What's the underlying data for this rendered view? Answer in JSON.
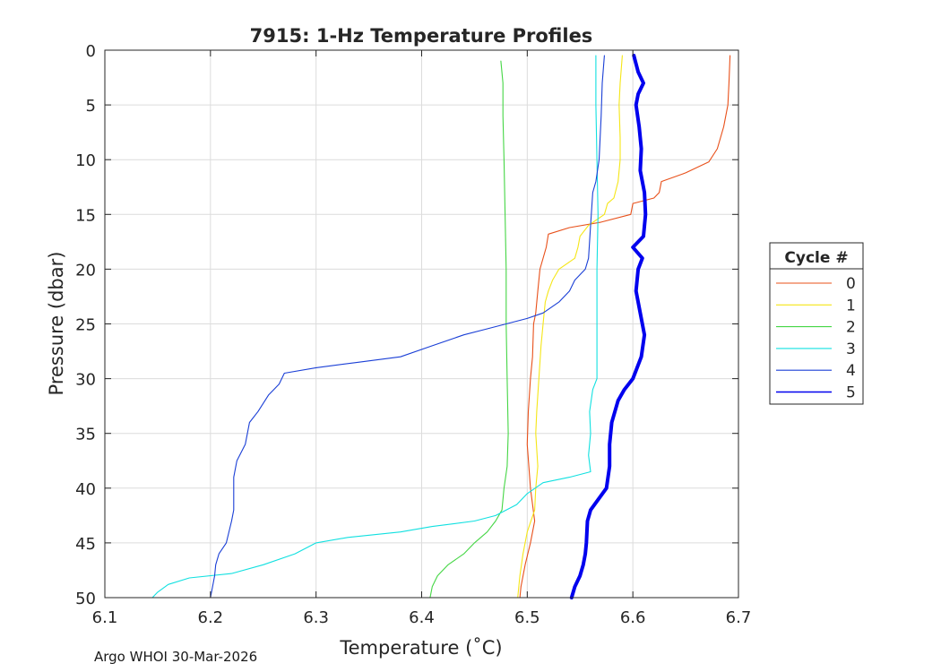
{
  "chart_data": {
    "type": "line",
    "title": "7915: 1-Hz Temperature Profiles",
    "xlabel": "Temperature (˚C)",
    "ylabel": "Pressure (dbar)",
    "xlim": [
      6.1,
      6.7
    ],
    "ylim": [
      0,
      50
    ],
    "y_reversed": true,
    "grid": true,
    "x_ticks": [
      6.1,
      6.2,
      6.3,
      6.4,
      6.5,
      6.6,
      6.7
    ],
    "x_tick_labels": [
      "6.1",
      "6.2",
      "6.3",
      "6.4",
      "6.5",
      "6.6",
      "6.7"
    ],
    "y_ticks": [
      0,
      5,
      10,
      15,
      20,
      25,
      30,
      35,
      40,
      45,
      50
    ],
    "y_tick_labels": [
      "0",
      "5",
      "10",
      "15",
      "20",
      "25",
      "30",
      "35",
      "40",
      "45",
      "50"
    ],
    "legend": {
      "title": "Cycle #",
      "placement": "outside-right"
    },
    "series": [
      {
        "name": "0",
        "color": "#e8501a",
        "bold": false,
        "points": [
          [
            6.692,
            0.5
          ],
          [
            6.691,
            3
          ],
          [
            6.69,
            5
          ],
          [
            6.686,
            7
          ],
          [
            6.68,
            9
          ],
          [
            6.672,
            10.2
          ],
          [
            6.65,
            11.2
          ],
          [
            6.627,
            12
          ],
          [
            6.625,
            13
          ],
          [
            6.62,
            13.5
          ],
          [
            6.6,
            14
          ],
          [
            6.598,
            15
          ],
          [
            6.57,
            15.7
          ],
          [
            6.54,
            16.2
          ],
          [
            6.52,
            16.8
          ],
          [
            6.518,
            18
          ],
          [
            6.512,
            20
          ],
          [
            6.51,
            22
          ],
          [
            6.508,
            24
          ],
          [
            6.506,
            25
          ],
          [
            6.505,
            28
          ],
          [
            6.503,
            30
          ],
          [
            6.501,
            33
          ],
          [
            6.5,
            36
          ],
          [
            6.503,
            40
          ],
          [
            6.507,
            43
          ],
          [
            6.503,
            45
          ],
          [
            6.498,
            47
          ],
          [
            6.494,
            49
          ],
          [
            6.493,
            50
          ]
        ]
      },
      {
        "name": "1",
        "color": "#f5e616",
        "bold": false,
        "points": [
          [
            6.59,
            0.5
          ],
          [
            6.588,
            3
          ],
          [
            6.587,
            5
          ],
          [
            6.588,
            8
          ],
          [
            6.588,
            10
          ],
          [
            6.586,
            12
          ],
          [
            6.582,
            13.5
          ],
          [
            6.576,
            14
          ],
          [
            6.573,
            15
          ],
          [
            6.558,
            16
          ],
          [
            6.55,
            17
          ],
          [
            6.548,
            18
          ],
          [
            6.545,
            19
          ],
          [
            6.53,
            20
          ],
          [
            6.524,
            21
          ],
          [
            6.52,
            22
          ],
          [
            6.517,
            23
          ],
          [
            6.515,
            25
          ],
          [
            6.513,
            27
          ],
          [
            6.511,
            30
          ],
          [
            6.509,
            33
          ],
          [
            6.508,
            35
          ],
          [
            6.51,
            38
          ],
          [
            6.508,
            40
          ],
          [
            6.507,
            42
          ],
          [
            6.5,
            44
          ],
          [
            6.496,
            46
          ],
          [
            6.493,
            48
          ],
          [
            6.491,
            50
          ]
        ]
      },
      {
        "name": "2",
        "color": "#45d645",
        "bold": false,
        "points": [
          [
            6.475,
            1
          ],
          [
            6.477,
            3
          ],
          [
            6.477,
            6
          ],
          [
            6.478,
            10
          ],
          [
            6.479,
            15
          ],
          [
            6.48,
            20
          ],
          [
            6.48,
            25
          ],
          [
            6.481,
            30
          ],
          [
            6.482,
            35
          ],
          [
            6.481,
            38
          ],
          [
            6.478,
            40
          ],
          [
            6.476,
            42
          ],
          [
            6.47,
            43
          ],
          [
            6.462,
            44
          ],
          [
            6.45,
            45
          ],
          [
            6.44,
            46
          ],
          [
            6.425,
            47
          ],
          [
            6.415,
            48
          ],
          [
            6.41,
            49
          ],
          [
            6.408,
            50
          ]
        ]
      },
      {
        "name": "3",
        "color": "#11e0e0",
        "bold": false,
        "points": [
          [
            6.565,
            0.5
          ],
          [
            6.565,
            5
          ],
          [
            6.566,
            10
          ],
          [
            6.567,
            15
          ],
          [
            6.566,
            20
          ],
          [
            6.566,
            25
          ],
          [
            6.566,
            30
          ],
          [
            6.562,
            31
          ],
          [
            6.559,
            33
          ],
          [
            6.56,
            35
          ],
          [
            6.558,
            37
          ],
          [
            6.56,
            38.5
          ],
          [
            6.54,
            39
          ],
          [
            6.515,
            39.5
          ],
          [
            6.5,
            40.5
          ],
          [
            6.49,
            41.5
          ],
          [
            6.47,
            42.5
          ],
          [
            6.45,
            43
          ],
          [
            6.41,
            43.5
          ],
          [
            6.38,
            44
          ],
          [
            6.33,
            44.5
          ],
          [
            6.3,
            45
          ],
          [
            6.28,
            46
          ],
          [
            6.25,
            47
          ],
          [
            6.22,
            47.8
          ],
          [
            6.18,
            48.2
          ],
          [
            6.16,
            48.8
          ],
          [
            6.15,
            49.5
          ],
          [
            6.145,
            50
          ]
        ]
      },
      {
        "name": "4",
        "color": "#1a3fd6",
        "bold": false,
        "points": [
          [
            6.573,
            0.5
          ],
          [
            6.571,
            3
          ],
          [
            6.57,
            6
          ],
          [
            6.568,
            10
          ],
          [
            6.565,
            12
          ],
          [
            6.562,
            13
          ],
          [
            6.56,
            16
          ],
          [
            6.558,
            19
          ],
          [
            6.555,
            20
          ],
          [
            6.545,
            21
          ],
          [
            6.54,
            22
          ],
          [
            6.53,
            23
          ],
          [
            6.515,
            24
          ],
          [
            6.5,
            24.5
          ],
          [
            6.48,
            25
          ],
          [
            6.46,
            25.5
          ],
          [
            6.44,
            26
          ],
          [
            6.41,
            27
          ],
          [
            6.38,
            28
          ],
          [
            6.34,
            28.5
          ],
          [
            6.3,
            29
          ],
          [
            6.27,
            29.5
          ],
          [
            6.265,
            30.5
          ],
          [
            6.255,
            31.5
          ],
          [
            6.245,
            33
          ],
          [
            6.237,
            34
          ],
          [
            6.233,
            36
          ],
          [
            6.225,
            37.5
          ],
          [
            6.222,
            39
          ],
          [
            6.222,
            42
          ],
          [
            6.22,
            43
          ],
          [
            6.215,
            45
          ],
          [
            6.208,
            46
          ],
          [
            6.205,
            47
          ],
          [
            6.204,
            48
          ],
          [
            6.202,
            49
          ],
          [
            6.2,
            50
          ]
        ]
      },
      {
        "name": "5",
        "color": "#0000ee",
        "bold": true,
        "points": [
          [
            6.601,
            0.5
          ],
          [
            6.605,
            2
          ],
          [
            6.61,
            3
          ],
          [
            6.605,
            4
          ],
          [
            6.603,
            5
          ],
          [
            6.606,
            7
          ],
          [
            6.608,
            9
          ],
          [
            6.607,
            11
          ],
          [
            6.611,
            13
          ],
          [
            6.612,
            15
          ],
          [
            6.61,
            17
          ],
          [
            6.6,
            18
          ],
          [
            6.609,
            19
          ],
          [
            6.605,
            20
          ],
          [
            6.603,
            22
          ],
          [
            6.607,
            24
          ],
          [
            6.611,
            26
          ],
          [
            6.608,
            28
          ],
          [
            6.6,
            30
          ],
          [
            6.592,
            31
          ],
          [
            6.586,
            32
          ],
          [
            6.58,
            34
          ],
          [
            6.578,
            36
          ],
          [
            6.578,
            38
          ],
          [
            6.575,
            40
          ],
          [
            6.56,
            42
          ],
          [
            6.557,
            43
          ],
          [
            6.556,
            45
          ],
          [
            6.555,
            46
          ],
          [
            6.553,
            47
          ],
          [
            6.55,
            48
          ],
          [
            6.545,
            49
          ],
          [
            6.542,
            50
          ]
        ]
      }
    ]
  },
  "footer": {
    "credit": "Argo WHOI 30-Mar-2026"
  }
}
